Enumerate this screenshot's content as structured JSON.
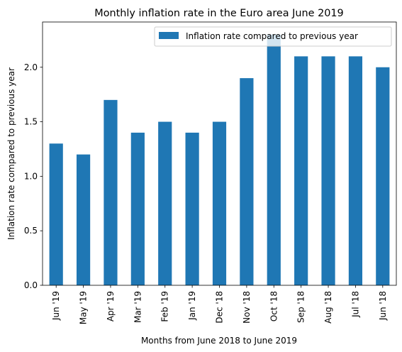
{
  "chart_data": {
    "type": "bar",
    "title": "Monthly inflation rate in the Euro area June 2019",
    "xlabel": "Months from June 2018 to June 2019",
    "ylabel": "Inflation rate compared to previous year",
    "categories": [
      "Jun '19",
      "May '19",
      "Apr '19",
      "Mar '19",
      "Feb '19",
      "Jan '19",
      "Dec '18",
      "Nov '18",
      "Oct '18",
      "Sep '18",
      "Aug '18",
      "Jul '18",
      "Jun '18"
    ],
    "series": [
      {
        "name": "Inflation rate compared to previous year",
        "color": "#1f77b4",
        "values": [
          1.3,
          1.2,
          1.7,
          1.4,
          1.5,
          1.4,
          1.5,
          1.9,
          2.3,
          2.1,
          2.1,
          2.1,
          2.0
        ]
      }
    ],
    "ylim": [
      0,
      2.415
    ],
    "yticks": [
      0.0,
      0.5,
      1.0,
      1.5,
      2.0
    ],
    "ytick_labels": [
      "0.0",
      "0.5",
      "1.0",
      "1.5",
      "2.0"
    ],
    "grid": false,
    "legend_position": "top-right"
  }
}
